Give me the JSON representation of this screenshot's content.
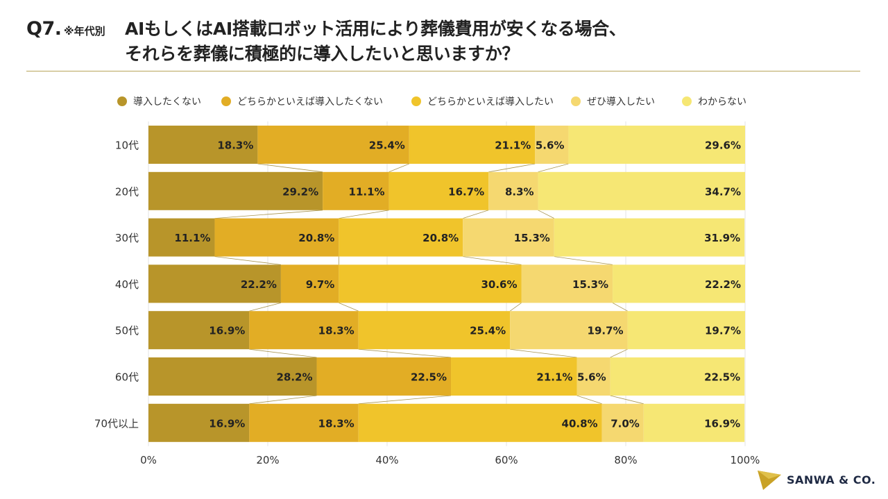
{
  "header": {
    "qnum": "Q7.",
    "note": "※年代別",
    "title_line1": "AIもしくはAI搭載ロボット活用により葬儀費用が安くなる場合、",
    "title_line2": "それらを葬儀に積極的に導入したいと思いますか？"
  },
  "colors": {
    "series": [
      "#b8952a",
      "#e2ad25",
      "#f0c42b",
      "#f5d870",
      "#f6e774"
    ],
    "text": "#222222",
    "rule": "#b8a55a",
    "logo": "#1f2a44"
  },
  "chart_data": {
    "type": "bar",
    "orientation": "horizontal",
    "stacked": "100%",
    "categories": [
      "10代",
      "20代",
      "30代",
      "40代",
      "50代",
      "60代",
      "70代以上"
    ],
    "series": [
      {
        "name": "導入したくない",
        "values": [
          18.3,
          29.2,
          11.1,
          22.2,
          16.9,
          28.2,
          16.9
        ]
      },
      {
        "name": "どちらかといえば導入したくない",
        "values": [
          25.4,
          11.1,
          20.8,
          9.7,
          18.3,
          22.5,
          18.3
        ]
      },
      {
        "name": "どちらかといえば導入したい",
        "values": [
          21.1,
          16.7,
          20.8,
          30.6,
          25.4,
          21.1,
          40.8
        ]
      },
      {
        "name": "ぜひ導入したい",
        "values": [
          5.6,
          8.3,
          15.3,
          15.3,
          19.7,
          5.6,
          7.0
        ]
      },
      {
        "name": "わからない",
        "values": [
          29.6,
          34.7,
          31.9,
          22.2,
          19.7,
          22.5,
          16.9
        ]
      }
    ],
    "xlim": [
      0,
      100
    ],
    "xticks": [
      "0%",
      "20%",
      "40%",
      "60%",
      "80%",
      "100%"
    ],
    "grid": true,
    "legend": "top",
    "value_suffix": "%"
  },
  "logo": {
    "text": "SANWA & CO."
  }
}
